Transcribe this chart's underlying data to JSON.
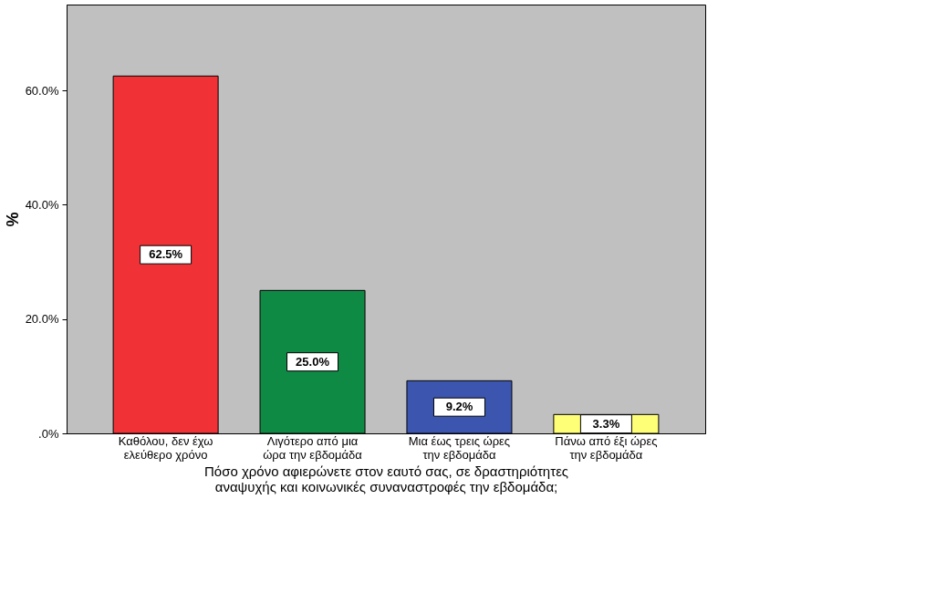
{
  "chart_data": {
    "type": "bar",
    "categories": [
      "Καθόλου, δεν έχω ελεύθερο χρόνο",
      "Λιγότερο από μια ώρα την εβδομάδα",
      "Μια έως τρεις ώρες την εβδομάδα",
      "Πάνω από έξι ώρες την εβδομάδα"
    ],
    "values": [
      62.5,
      25.0,
      9.2,
      3.3
    ],
    "colors": [
      "#f03237",
      "#0f8a44",
      "#3c56b0",
      "#ffff77"
    ],
    "value_labels": [
      "62.5%",
      "25.0%",
      "9.2%",
      "3.3%"
    ],
    "xlabel": "Πόσο χρόνο αφιερώνετε στον εαυτό σας, σε δραστηριότητες αναψυχής και κοινωνικές συναναστροφές την εβδομάδα;",
    "ylabel": "%",
    "ylim": [
      0,
      75
    ],
    "yticks": [
      {
        "value": 0,
        "label": ".0%"
      },
      {
        "value": 20,
        "label": "20.0%"
      },
      {
        "value": 40,
        "label": "40.0%"
      },
      {
        "value": 60,
        "label": "60.0%"
      }
    ],
    "grid": false
  }
}
